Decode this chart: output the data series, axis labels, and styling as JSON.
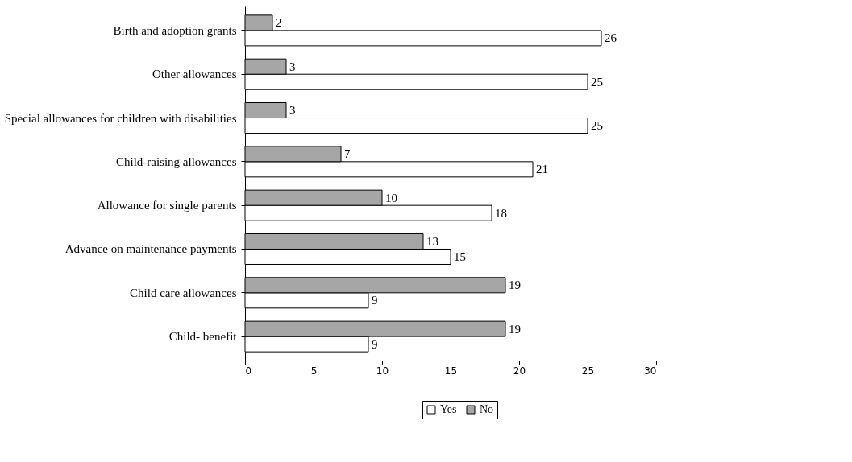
{
  "chart_data": {
    "type": "bar",
    "orientation": "horizontal",
    "categories": [
      "Birth and adoption grants",
      "Other allowances",
      "Special allowances for children with disabilities",
      "Child-raising allowances",
      "Allowance for single parents",
      "Advance on maintenance payments",
      "Child care allowances",
      "Child- benefit"
    ],
    "series": [
      {
        "name": "Yes",
        "color": "#ffffff",
        "values": [
          26,
          25,
          25,
          21,
          18,
          15,
          9,
          9
        ]
      },
      {
        "name": "No",
        "color": "#a6a6a6",
        "values": [
          2,
          3,
          3,
          7,
          10,
          13,
          19,
          19
        ]
      }
    ],
    "xlim": [
      0,
      30
    ],
    "xticks": [
      0,
      5,
      10,
      15,
      20,
      25,
      30
    ],
    "data_labels": true,
    "legend": "bottom",
    "grid": false
  }
}
